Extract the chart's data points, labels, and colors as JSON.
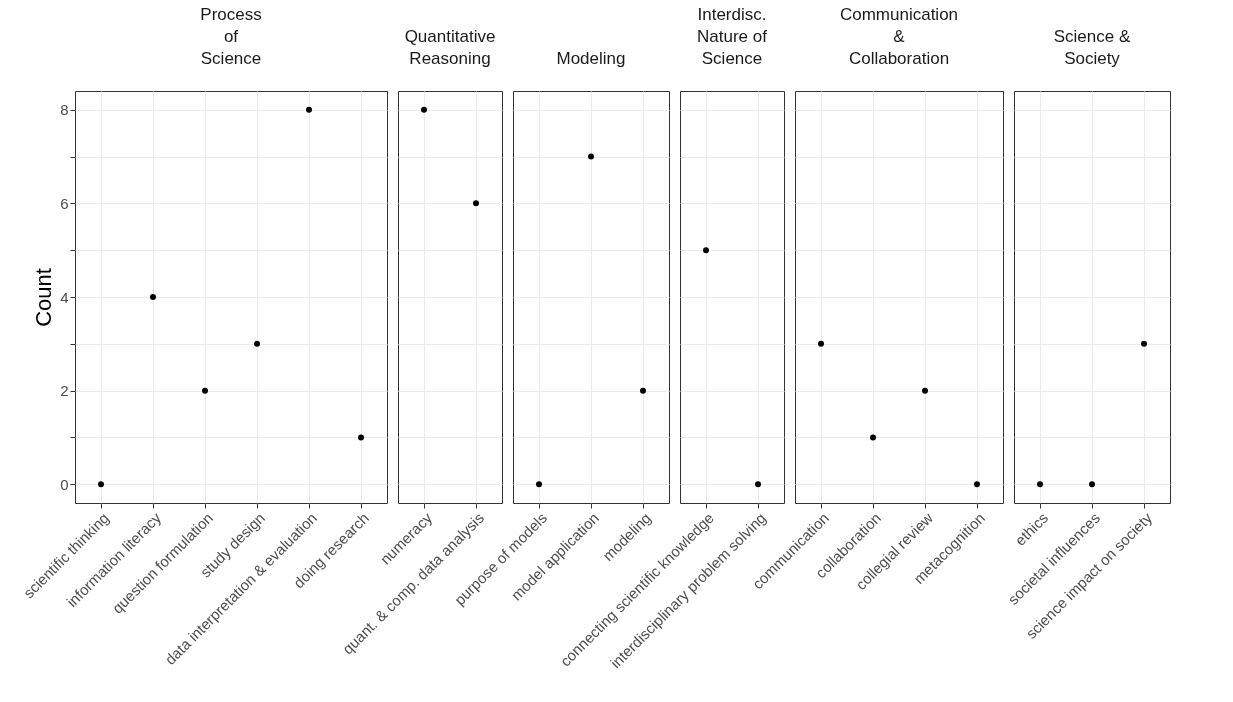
{
  "chart_data": [
    {
      "type": "scatter",
      "title": "Process\nof\nScience",
      "ylabel": "Count",
      "categories": [
        "scientific thinking",
        "information literacy",
        "question formulation",
        "study design",
        "data interpretation & evaluation",
        "doing research"
      ],
      "values": [
        0,
        4,
        2,
        3,
        8,
        1
      ],
      "color": "#000000",
      "marker": "circle",
      "grid": true,
      "ylim": [
        -0.4,
        8.4
      ],
      "yticks": [
        0,
        {
          "value": 1,
          "label": null
        },
        2,
        {
          "value": 3,
          "label": null
        },
        4,
        {
          "value": 5,
          "label": null
        },
        6,
        {
          "value": 7,
          "label": null
        },
        8
      ]
    },
    {
      "type": "scatter",
      "title": "Quantitative\nReasoning",
      "categories": [
        "numeracy",
        "quant. & comp. data analysis"
      ],
      "values": [
        8,
        6
      ],
      "color": "#000000",
      "marker": "circle",
      "grid": true,
      "tick_labels": "x",
      "ylim": [
        -0.4,
        8.4
      ],
      "yticks": [
        0,
        {
          "value": 1,
          "label": null
        },
        2,
        {
          "value": 3,
          "label": null
        },
        4,
        {
          "value": 5,
          "label": null
        },
        6,
        {
          "value": 7,
          "label": null
        },
        8
      ]
    },
    {
      "type": "scatter",
      "title": "Modeling",
      "categories": [
        "purpose of models",
        "model application",
        "modeling"
      ],
      "values": [
        0,
        7,
        2
      ],
      "color": "#000000",
      "marker": "circle",
      "grid": true,
      "tick_labels": "x",
      "ylim": [
        -0.4,
        8.4
      ],
      "yticks": [
        0,
        {
          "value": 1,
          "label": null
        },
        2,
        {
          "value": 3,
          "label": null
        },
        4,
        {
          "value": 5,
          "label": null
        },
        6,
        {
          "value": 7,
          "label": null
        },
        8
      ]
    },
    {
      "type": "scatter",
      "title": "Interdisc.\nNature of\nScience",
      "categories": [
        "connecting scientific knowledge",
        "interdisciplinary problem solving"
      ],
      "values": [
        5,
        0
      ],
      "color": "#000000",
      "marker": "circle",
      "grid": true,
      "tick_labels": "x",
      "ylim": [
        -0.4,
        8.4
      ],
      "yticks": [
        0,
        {
          "value": 1,
          "label": null
        },
        2,
        {
          "value": 3,
          "label": null
        },
        4,
        {
          "value": 5,
          "label": null
        },
        6,
        {
          "value": 7,
          "label": null
        },
        8
      ]
    },
    {
      "type": "scatter",
      "title": "Communication\n&\nCollaboration",
      "categories": [
        "communication",
        "collaboration",
        "collegial review",
        "metacognition"
      ],
      "values": [
        3,
        1,
        2,
        0
      ],
      "color": "#000000",
      "marker": "circle",
      "grid": true,
      "tick_labels": "x",
      "ylim": [
        -0.4,
        8.4
      ],
      "yticks": [
        0,
        {
          "value": 1,
          "label": null
        },
        2,
        {
          "value": 3,
          "label": null
        },
        4,
        {
          "value": 5,
          "label": null
        },
        6,
        {
          "value": 7,
          "label": null
        },
        8
      ]
    },
    {
      "type": "scatter",
      "title": "Science &\nSociety",
      "categories": [
        "ethics",
        "societal influences",
        "science impact on society"
      ],
      "values": [
        0,
        0,
        3
      ],
      "color": "#000000",
      "marker": "circle",
      "grid": true,
      "tick_labels": "x",
      "ylim": [
        -0.4,
        8.4
      ],
      "yticks": [
        0,
        {
          "value": 1,
          "label": null
        },
        2,
        {
          "value": 3,
          "label": null
        },
        4,
        {
          "value": 5,
          "label": null
        },
        6,
        {
          "value": 7,
          "label": null
        },
        8
      ]
    }
  ]
}
